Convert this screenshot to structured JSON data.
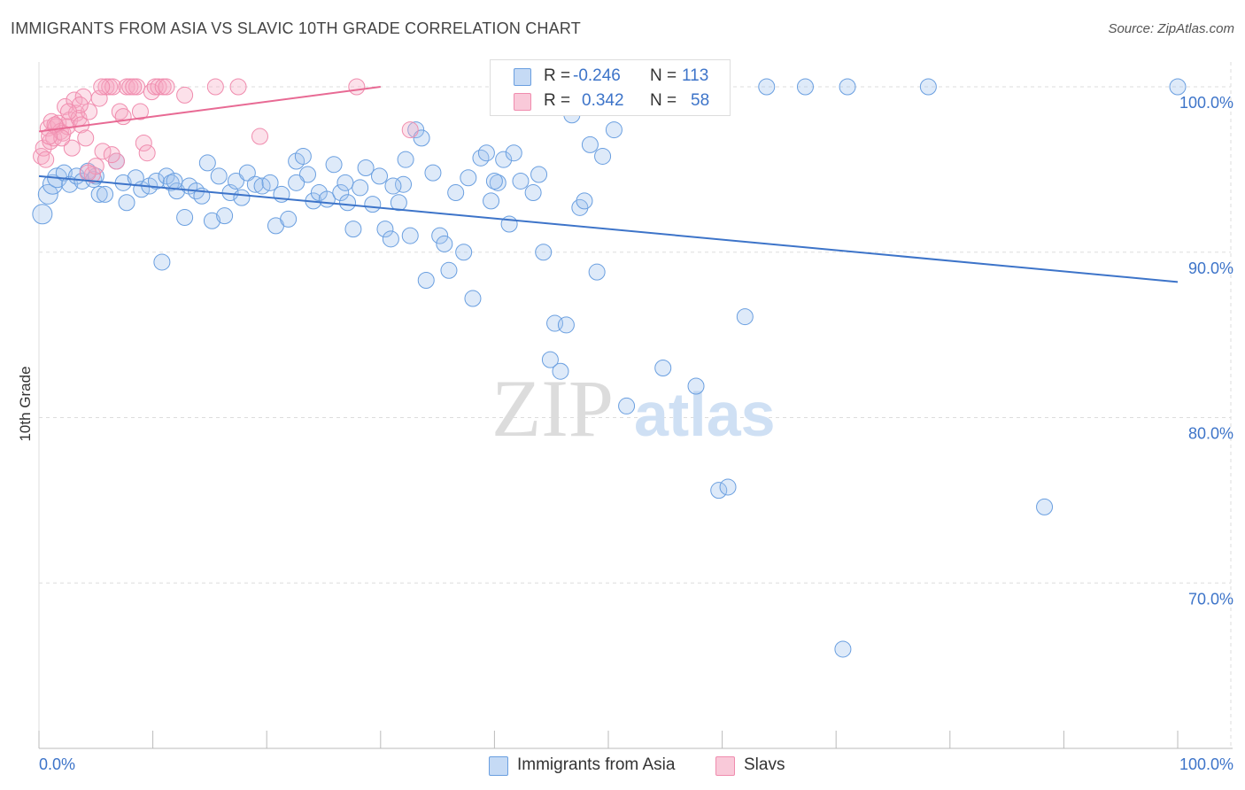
{
  "header": {
    "title": "IMMIGRANTS FROM ASIA VS SLAVIC 10TH GRADE CORRELATION CHART",
    "source": "Source: ZipAtlas.com"
  },
  "watermark": {
    "zip": "ZIP",
    "atlas": "atlas"
  },
  "legend": {
    "rows": [
      {
        "r_label": "R =",
        "r_value": "-0.246",
        "n_label": "N =",
        "n_value": "113",
        "color": "#6a9fe0"
      },
      {
        "r_label": "R =",
        "r_value": "0.342",
        "n_label": "N =",
        "n_value": "58",
        "color": "#f08cae"
      }
    ]
  },
  "bottom_legend": {
    "items": [
      {
        "label": "Immigrants from Asia",
        "color": "#6a9fe0"
      },
      {
        "label": "Slavs",
        "color": "#f08cae"
      }
    ]
  },
  "chart_data": {
    "type": "scatter",
    "title": "IMMIGRANTS FROM ASIA VS SLAVIC 10TH GRADE CORRELATION CHART",
    "xlabel": "",
    "ylabel": "10th Grade",
    "xlim": [
      0,
      100
    ],
    "ylim": [
      60,
      101.5
    ],
    "x_tick_labels": [
      "0.0%",
      "100.0%"
    ],
    "y_ticks": [
      {
        "value": 100,
        "label": "100.0%"
      },
      {
        "value": 90,
        "label": "90.0%"
      },
      {
        "value": 80,
        "label": "80.0%"
      },
      {
        "value": 70,
        "label": "70.0%"
      }
    ],
    "grid": true,
    "series": [
      {
        "name": "Immigrants from Asia",
        "color": "#6a9fe0",
        "trend": {
          "x": [
            0,
            100
          ],
          "y": [
            94.6,
            88.2
          ]
        },
        "points": [
          [
            0.3,
            92.3
          ],
          [
            0.8,
            93.5
          ],
          [
            1.2,
            94.1
          ],
          [
            1.6,
            94.5
          ],
          [
            2.2,
            94.8
          ],
          [
            2.7,
            94.1
          ],
          [
            3.3,
            94.6
          ],
          [
            3.8,
            94.3
          ],
          [
            4.3,
            94.9
          ],
          [
            4.8,
            94.4
          ],
          [
            5.3,
            93.5
          ],
          [
            5.8,
            93.5
          ],
          [
            6.8,
            95.5
          ],
          [
            7.4,
            94.2
          ],
          [
            7.7,
            93.0
          ],
          [
            8.5,
            94.5
          ],
          [
            9.0,
            93.8
          ],
          [
            9.7,
            94.0
          ],
          [
            10.3,
            94.3
          ],
          [
            10.8,
            89.4
          ],
          [
            11.2,
            94.6
          ],
          [
            11.6,
            94.2
          ],
          [
            12.1,
            93.7
          ],
          [
            12.8,
            92.1
          ],
          [
            13.2,
            94.0
          ],
          [
            13.8,
            93.7
          ],
          [
            14.3,
            93.4
          ],
          [
            14.8,
            95.4
          ],
          [
            15.2,
            91.9
          ],
          [
            15.8,
            94.6
          ],
          [
            16.3,
            92.2
          ],
          [
            16.8,
            93.6
          ],
          [
            17.3,
            94.3
          ],
          [
            17.8,
            93.3
          ],
          [
            18.3,
            94.8
          ],
          [
            19.0,
            94.1
          ],
          [
            19.6,
            94.0
          ],
          [
            20.3,
            94.2
          ],
          [
            20.8,
            91.6
          ],
          [
            21.3,
            93.5
          ],
          [
            21.9,
            92.0
          ],
          [
            22.6,
            95.5
          ],
          [
            23.2,
            95.8
          ],
          [
            23.6,
            94.7
          ],
          [
            24.1,
            93.1
          ],
          [
            24.6,
            93.6
          ],
          [
            25.3,
            93.2
          ],
          [
            25.9,
            95.3
          ],
          [
            26.5,
            93.6
          ],
          [
            27.1,
            93.0
          ],
          [
            27.6,
            91.4
          ],
          [
            28.2,
            93.9
          ],
          [
            28.7,
            95.1
          ],
          [
            29.3,
            92.9
          ],
          [
            29.9,
            94.6
          ],
          [
            30.4,
            91.4
          ],
          [
            30.9,
            90.8
          ],
          [
            31.6,
            93.0
          ],
          [
            32.2,
            95.6
          ],
          [
            32.6,
            91.0
          ],
          [
            33.1,
            97.4
          ],
          [
            33.6,
            96.9
          ],
          [
            34.0,
            88.3
          ],
          [
            34.6,
            94.8
          ],
          [
            35.2,
            91.0
          ],
          [
            35.6,
            90.5
          ],
          [
            36.0,
            88.9
          ],
          [
            36.6,
            93.6
          ],
          [
            37.3,
            90.0
          ],
          [
            37.7,
            94.5
          ],
          [
            38.1,
            87.2
          ],
          [
            38.8,
            95.7
          ],
          [
            39.3,
            96.0
          ],
          [
            39.7,
            93.1
          ],
          [
            40.3,
            94.2
          ],
          [
            40.8,
            95.6
          ],
          [
            41.3,
            91.7
          ],
          [
            41.7,
            96.0
          ],
          [
            42.3,
            94.3
          ],
          [
            42.9,
            99.5
          ],
          [
            43.4,
            93.6
          ],
          [
            43.9,
            94.7
          ],
          [
            44.3,
            90.0
          ],
          [
            44.9,
            83.5
          ],
          [
            45.3,
            85.7
          ],
          [
            45.8,
            82.8
          ],
          [
            46.3,
            85.6
          ],
          [
            46.8,
            98.3
          ],
          [
            47.5,
            92.7
          ],
          [
            47.9,
            93.1
          ],
          [
            48.4,
            96.5
          ],
          [
            49.0,
            88.8
          ],
          [
            49.5,
            95.8
          ],
          [
            50.5,
            97.4
          ],
          [
            51.6,
            80.7
          ],
          [
            52.6,
            100.0
          ],
          [
            53.3,
            100.0
          ],
          [
            54.8,
            83.0
          ],
          [
            55.6,
            99.9
          ],
          [
            57.7,
            81.9
          ],
          [
            59.7,
            75.6
          ],
          [
            60.5,
            75.8
          ],
          [
            62.0,
            86.1
          ],
          [
            63.9,
            100.0
          ],
          [
            67.3,
            100.0
          ],
          [
            70.6,
            66.0
          ],
          [
            71.0,
            100.0
          ],
          [
            78.1,
            100.0
          ],
          [
            88.3,
            74.6
          ],
          [
            100.0,
            100.0
          ],
          [
            5.0,
            94.6
          ],
          [
            11.9,
            94.3
          ],
          [
            26.9,
            94.2
          ],
          [
            32.0,
            94.1
          ],
          [
            40.0,
            94.3
          ],
          [
            22.6,
            94.2
          ],
          [
            31.1,
            94.0
          ]
        ]
      },
      {
        "name": "Slavs",
        "color": "#f08cae",
        "trend": {
          "x": [
            0,
            30
          ],
          "y": [
            97.3,
            100.0
          ]
        },
        "points": [
          [
            0.2,
            95.8
          ],
          [
            0.4,
            96.3
          ],
          [
            0.6,
            95.6
          ],
          [
            0.8,
            97.5
          ],
          [
            1.0,
            96.7
          ],
          [
            1.1,
            97.9
          ],
          [
            1.3,
            96.9
          ],
          [
            1.5,
            97.6
          ],
          [
            1.7,
            97.8
          ],
          [
            1.9,
            97.3
          ],
          [
            2.1,
            97.2
          ],
          [
            2.3,
            98.8
          ],
          [
            2.5,
            97.6
          ],
          [
            2.7,
            98.0
          ],
          [
            2.9,
            96.3
          ],
          [
            3.1,
            99.2
          ],
          [
            3.3,
            98.4
          ],
          [
            3.5,
            98.1
          ],
          [
            3.7,
            97.7
          ],
          [
            3.9,
            99.4
          ],
          [
            4.1,
            96.9
          ],
          [
            4.4,
            98.5
          ],
          [
            4.7,
            94.7
          ],
          [
            5.0,
            95.2
          ],
          [
            5.3,
            99.3
          ],
          [
            5.6,
            96.1
          ],
          [
            5.9,
            100.0
          ],
          [
            6.2,
            100.0
          ],
          [
            6.5,
            100.0
          ],
          [
            6.8,
            95.5
          ],
          [
            7.1,
            98.5
          ],
          [
            7.4,
            98.2
          ],
          [
            7.7,
            100.0
          ],
          [
            8.0,
            100.0
          ],
          [
            8.6,
            100.0
          ],
          [
            8.9,
            98.5
          ],
          [
            9.2,
            96.6
          ],
          [
            9.5,
            96.0
          ],
          [
            9.9,
            99.7
          ],
          [
            10.2,
            100.0
          ],
          [
            10.5,
            100.0
          ],
          [
            10.9,
            100.0
          ],
          [
            11.2,
            100.0
          ],
          [
            12.8,
            99.5
          ],
          [
            15.5,
            100.0
          ],
          [
            17.5,
            100.0
          ],
          [
            19.4,
            97.0
          ],
          [
            27.9,
            100.0
          ],
          [
            32.6,
            97.4
          ],
          [
            1.4,
            97.7
          ],
          [
            2.0,
            96.9
          ],
          [
            3.6,
            98.9
          ],
          [
            4.3,
            94.8
          ],
          [
            5.5,
            100.0
          ],
          [
            6.4,
            95.9
          ],
          [
            8.3,
            100.0
          ],
          [
            0.9,
            97.0
          ],
          [
            2.6,
            98.5
          ]
        ]
      }
    ]
  }
}
